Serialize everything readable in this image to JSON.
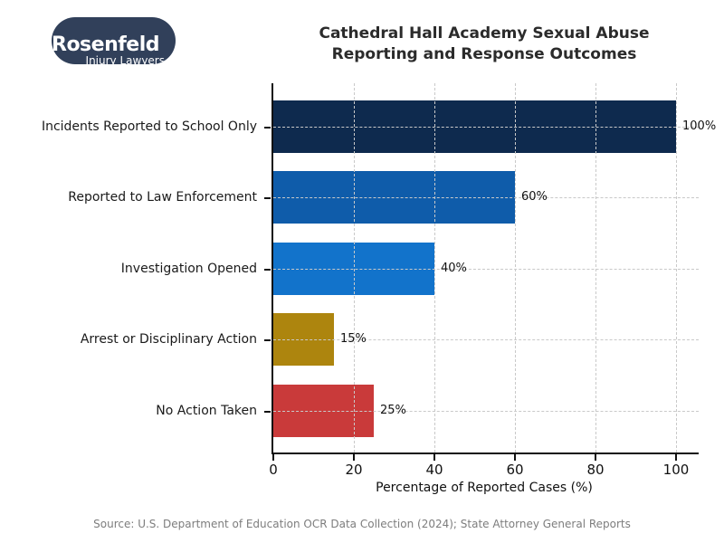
{
  "logo": {
    "name": "Rosenfeld",
    "tagline": "Injury Lawyers",
    "background_color": "#31405a",
    "text_color": "#ffffff"
  },
  "title": {
    "line1": "Cathedral Hall Academy Sexual Abuse",
    "line2": "Reporting and Response Outcomes"
  },
  "chart_data": {
    "type": "bar",
    "orientation": "horizontal",
    "title": "Cathedral Hall Academy Sexual Abuse Reporting and Response Outcomes",
    "categories": [
      "Incidents Reported to School Only",
      "Reported to Law Enforcement",
      "Investigation Opened",
      "Arrest or Disciplinary Action",
      "No Action Taken"
    ],
    "values": [
      100,
      60,
      40,
      15,
      25
    ],
    "value_labels": [
      "100%",
      "60%",
      "40%",
      "15%",
      "25%"
    ],
    "bar_colors": [
      "#0e2a4e",
      "#0f5caa",
      "#1273cb",
      "#ad850e",
      "#c93a3a"
    ],
    "xlabel": "Percentage of Reported Cases (%)",
    "xticks": [
      0,
      20,
      40,
      60,
      80,
      100
    ],
    "xtick_labels": [
      "0",
      "20",
      "40",
      "60",
      "80",
      "100"
    ],
    "xlim": [
      0,
      105
    ],
    "grid": "dashed",
    "grid_color": "#c9c9c9",
    "spine_color": "#111111",
    "legend": "none"
  },
  "source": "Source: U.S. Department of Education OCR Data Collection (2024); State Attorney General Reports"
}
